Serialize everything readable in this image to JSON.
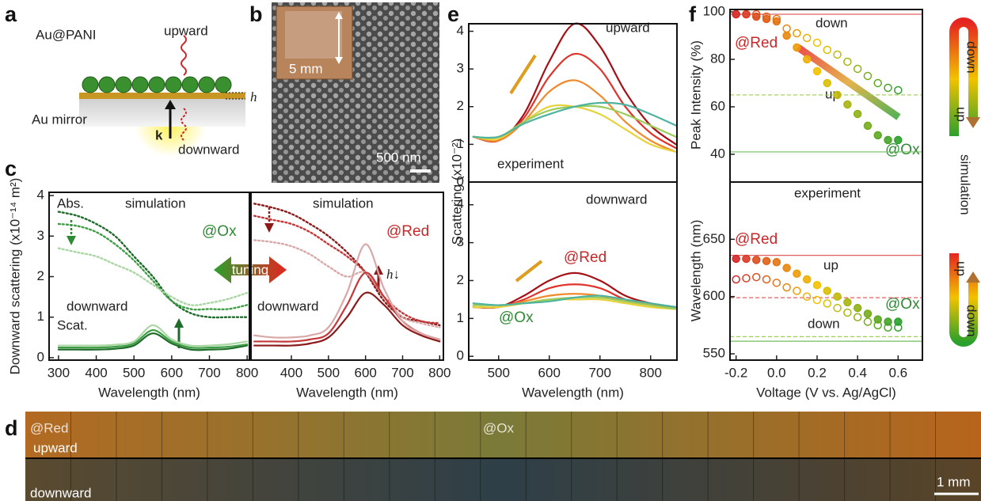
{
  "panel_labels": [
    "a",
    "b",
    "c",
    "d",
    "e",
    "f"
  ],
  "schematic": {
    "labels": [
      "Au@PANI",
      "upward",
      "h",
      "Au mirror",
      "k",
      "downward"
    ]
  },
  "micrograph": {
    "inset_scale": "5 mm",
    "scale_bar": "500 nm"
  },
  "image_strip": {
    "labels": [
      "@Red",
      "upward",
      "@Ox",
      "downward",
      "1 mm"
    ]
  },
  "side_bars": {
    "labels": [
      "down",
      "up",
      "simulation",
      "up",
      "down"
    ]
  },
  "chart_data": [
    {
      "type": "line",
      "xlabel": "Wavelength (nm)",
      "ylabel": "Downward scattering (x10⁻¹⁴ m²)",
      "xlim": [
        275,
        806
      ],
      "ylim": [
        -0.06,
        4.08
      ],
      "xticks": [
        300,
        400,
        500,
        600,
        700,
        800
      ],
      "yticks": [
        0,
        1,
        2,
        3,
        4
      ],
      "annotations": [
        "Abs.",
        "simulation",
        "@Ox",
        "downward",
        "Scat.",
        "tuning"
      ],
      "x": [
        300,
        350,
        400,
        450,
        500,
        550,
        600,
        650,
        700,
        750,
        800
      ],
      "series": [
        {
          "color": "#1e6b2a",
          "dash": "dotted",
          "values": [
            3.6,
            3.5,
            3.3,
            3.0,
            2.5,
            2.0,
            1.4,
            1.1,
            1.0,
            1.0,
            1.0
          ]
        },
        {
          "color": "#3f9e45",
          "dash": "dotted",
          "values": [
            3.3,
            3.25,
            3.1,
            2.8,
            2.4,
            1.9,
            1.4,
            1.2,
            1.2,
            1.2,
            1.3
          ]
        },
        {
          "color": "#a9d6a3",
          "dash": "dotted",
          "values": [
            2.7,
            2.6,
            2.5,
            2.3,
            2.1,
            1.8,
            1.5,
            1.3,
            1.35,
            1.45,
            1.6
          ]
        },
        {
          "color": "#1e6b2a",
          "dash": "solid",
          "values": [
            0.2,
            0.2,
            0.2,
            0.22,
            0.3,
            0.6,
            0.35,
            0.2,
            0.2,
            0.22,
            0.3
          ]
        },
        {
          "color": "#3f9e45",
          "dash": "solid",
          "values": [
            0.25,
            0.25,
            0.25,
            0.27,
            0.35,
            0.68,
            0.4,
            0.25,
            0.25,
            0.27,
            0.33
          ]
        },
        {
          "color": "#a9d6a3",
          "dash": "solid",
          "values": [
            0.3,
            0.3,
            0.3,
            0.32,
            0.4,
            0.8,
            0.45,
            0.3,
            0.3,
            0.33,
            0.4
          ]
        }
      ]
    },
    {
      "type": "line",
      "xlabel": "Wavelength (nm)",
      "xlim": [
        291,
        810
      ],
      "ylim": [
        -0.06,
        4.08
      ],
      "xticks": [
        400,
        500,
        600,
        700,
        800
      ],
      "annotations": [
        "simulation",
        "@Red",
        "h↓",
        "downward"
      ],
      "x": [
        300,
        350,
        400,
        450,
        500,
        550,
        600,
        650,
        700,
        750,
        800
      ],
      "series": [
        {
          "color": "#8b1a1a",
          "dash": "dotted",
          "values": [
            3.8,
            3.7,
            3.55,
            3.3,
            3.0,
            2.6,
            2.1,
            1.4,
            1.0,
            0.9,
            0.8
          ]
        },
        {
          "color": "#c4383a",
          "dash": "dotted",
          "values": [
            3.5,
            3.4,
            3.3,
            3.1,
            2.8,
            2.5,
            2.1,
            1.5,
            1.1,
            0.9,
            0.85
          ]
        },
        {
          "color": "#d9a8a8",
          "dash": "dotted",
          "values": [
            2.9,
            2.85,
            2.75,
            2.55,
            2.25,
            2.0,
            2.1,
            1.5,
            1.0,
            0.85,
            0.75
          ]
        },
        {
          "color": "#8b1a1a",
          "dash": "solid",
          "values": [
            0.3,
            0.3,
            0.3,
            0.35,
            0.5,
            1.0,
            1.6,
            1.3,
            0.8,
            0.55,
            0.4
          ]
        },
        {
          "color": "#c4383a",
          "dash": "solid",
          "values": [
            0.4,
            0.4,
            0.4,
            0.45,
            0.6,
            1.3,
            2.1,
            1.5,
            0.9,
            0.6,
            0.45
          ]
        },
        {
          "color": "#d9a8a8",
          "dash": "solid",
          "values": [
            0.55,
            0.5,
            0.5,
            0.55,
            0.75,
            1.6,
            2.8,
            1.7,
            0.9,
            0.6,
            0.45
          ]
        }
      ]
    },
    {
      "type": "line",
      "ylabel": "Scattering (x10⁻²)",
      "xlim": [
        441,
        852
      ],
      "ylim": [
        0,
        4.2
      ],
      "yticks": [
        0,
        1,
        2,
        3,
        4
      ],
      "annotations": [
        "upward",
        "experiment"
      ],
      "x": [
        450,
        500,
        550,
        600,
        650,
        700,
        750,
        800,
        850
      ],
      "series": [
        {
          "color": "#a50f15",
          "values": [
            1.2,
            1.1,
            1.8,
            3.2,
            4.2,
            3.6,
            2.4,
            1.5,
            1.0
          ]
        },
        {
          "color": "#e0332b",
          "values": [
            1.2,
            1.1,
            1.7,
            2.8,
            3.4,
            3.0,
            2.0,
            1.3,
            0.9
          ]
        },
        {
          "color": "#f08a2c",
          "values": [
            1.2,
            1.1,
            1.6,
            2.4,
            2.7,
            2.3,
            1.6,
            1.1,
            0.8
          ]
        },
        {
          "color": "#e8d23a",
          "values": [
            1.2,
            1.15,
            1.6,
            2.0,
            2.0,
            1.8,
            1.4,
            1.0,
            0.8
          ]
        },
        {
          "color": "#9ccc5a",
          "values": [
            1.2,
            1.2,
            1.6,
            1.9,
            2.0,
            2.0,
            1.8,
            1.5,
            1.2
          ]
        },
        {
          "color": "#4fb3a0",
          "values": [
            1.2,
            1.2,
            1.55,
            1.8,
            2.0,
            2.1,
            2.05,
            1.8,
            1.5
          ]
        }
      ]
    },
    {
      "type": "line",
      "xlabel": "Wavelength (nm)",
      "xlim": [
        441,
        852
      ],
      "ylim": [
        -0.1,
        4.6
      ],
      "xticks": [
        500,
        600,
        700,
        800
      ],
      "yticks": [
        0,
        1,
        2,
        3,
        4
      ],
      "annotations": [
        "downward",
        "@Red",
        "@Ox"
      ],
      "x": [
        450,
        500,
        550,
        600,
        650,
        700,
        750,
        800,
        850
      ],
      "series": [
        {
          "color": "#a50f15",
          "values": [
            1.3,
            1.3,
            1.6,
            2.0,
            2.2,
            2.0,
            1.6,
            1.4,
            1.3
          ]
        },
        {
          "color": "#e0332b",
          "values": [
            1.3,
            1.3,
            1.5,
            1.8,
            1.9,
            1.8,
            1.5,
            1.35,
            1.25
          ]
        },
        {
          "color": "#f08a2c",
          "values": [
            1.3,
            1.3,
            1.45,
            1.6,
            1.65,
            1.6,
            1.45,
            1.35,
            1.25
          ]
        },
        {
          "color": "#e8d23a",
          "values": [
            1.3,
            1.3,
            1.4,
            1.5,
            1.5,
            1.5,
            1.4,
            1.3,
            1.25
          ]
        },
        {
          "color": "#9ccc5a",
          "values": [
            1.35,
            1.35,
            1.4,
            1.5,
            1.55,
            1.55,
            1.45,
            1.35,
            1.25
          ]
        },
        {
          "color": "#4fb3a0",
          "values": [
            1.4,
            1.35,
            1.4,
            1.45,
            1.55,
            1.6,
            1.5,
            1.4,
            1.3
          ]
        }
      ]
    },
    {
      "type": "scatter",
      "ylabel": "Peak Intensity (%)",
      "xlim": [
        -0.23,
        0.72
      ],
      "ylim": [
        28.3,
        101
      ],
      "yticks": [
        40,
        60,
        80,
        100
      ],
      "color_ramp": [
        "#d62728",
        "#f2c200",
        "#2ca02c"
      ],
      "annotations": [
        "down",
        "@Red",
        "up",
        "@Ox",
        "experiment"
      ],
      "hlines": [
        {
          "value": 99,
          "color": "#e06060",
          "dash": false
        },
        {
          "value": 65,
          "color": "#9ccc5a",
          "dash": true
        },
        {
          "value": 41,
          "color": "#6fbf5f",
          "dash": false
        }
      ],
      "x": [
        -0.2,
        -0.15,
        -0.1,
        -0.05,
        0,
        0.05,
        0.1,
        0.15,
        0.2,
        0.25,
        0.3,
        0.35,
        0.4,
        0.45,
        0.5,
        0.55,
        0.6
      ],
      "series": [
        {
          "marker": "filled",
          "values": [
            99,
            99,
            98,
            97,
            96,
            90,
            85,
            80,
            75,
            70,
            65,
            61,
            57,
            52,
            48,
            46,
            46
          ]
        },
        {
          "marker": "open",
          "values": [
            99,
            99,
            99,
            98,
            97,
            93,
            91,
            89,
            87,
            84,
            82,
            79,
            76,
            73,
            70,
            68,
            67
          ]
        }
      ]
    },
    {
      "type": "scatter",
      "ylabel": "Wavelength (nm)",
      "xlabel": "Voltage (V vs. Ag/AgCl)",
      "xlim": [
        -0.23,
        0.72
      ],
      "ylim": [
        544.5,
        700
      ],
      "yticks": [
        550,
        600,
        650
      ],
      "xticks": [
        -0.2,
        {
          "value": 0,
          "label": "0.0"
        },
        0.2,
        0.4,
        0.6
      ],
      "color_ramp": [
        "#d62728",
        "#f2c200",
        "#2ca02c"
      ],
      "annotations": [
        "@Red",
        "up",
        "@Ox",
        "down"
      ],
      "hlines": [
        {
          "value": 636,
          "color": "#e06060",
          "dash": false
        },
        {
          "value": 599,
          "color": "#e06060",
          "dash": true
        },
        {
          "value": 565,
          "color": "#9ccc5a",
          "dash": true
        },
        {
          "value": 561,
          "color": "#6fbf5f",
          "dash": false
        }
      ],
      "x": [
        -0.2,
        -0.15,
        -0.1,
        -0.05,
        0,
        0.05,
        0.1,
        0.15,
        0.2,
        0.25,
        0.3,
        0.35,
        0.4,
        0.45,
        0.5,
        0.55,
        0.6
      ],
      "series": [
        {
          "marker": "filled",
          "values": [
            633,
            633,
            632,
            631,
            630,
            625,
            620,
            615,
            610,
            605,
            600,
            595,
            590,
            585,
            580,
            578,
            578
          ]
        },
        {
          "marker": "open",
          "values": [
            615,
            616,
            617,
            615,
            612,
            608,
            605,
            600,
            597,
            594,
            590,
            586,
            582,
            578,
            575,
            573,
            573
          ]
        }
      ]
    }
  ]
}
